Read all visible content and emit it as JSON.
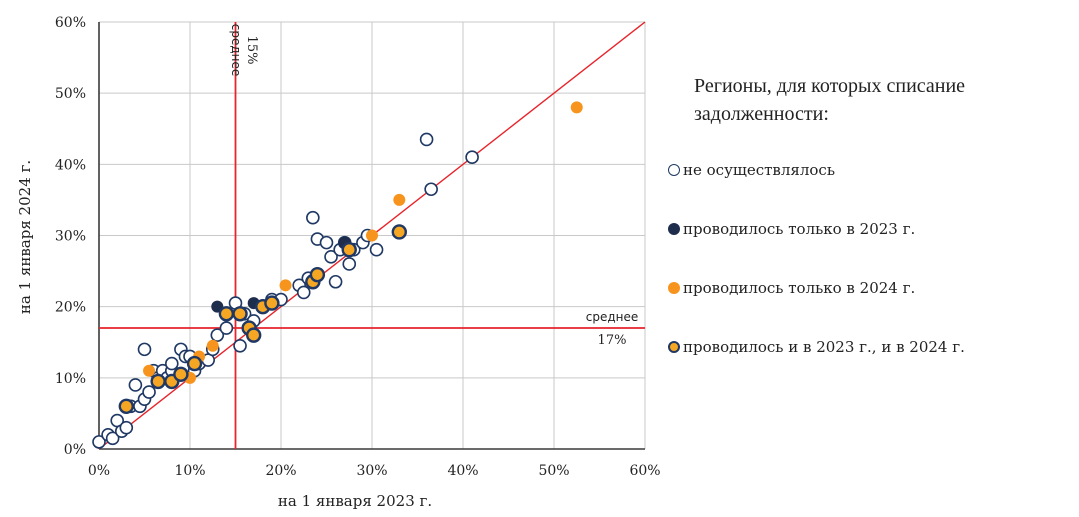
{
  "chart_data": {
    "type": "scatter",
    "xlabel": "на 1 января 2023 г.",
    "ylabel": "на 1 января 2024 г.",
    "xlim": [
      0,
      60
    ],
    "ylim": [
      0,
      60
    ],
    "x_ticks": [
      "0%",
      "10%",
      "20%",
      "30%",
      "40%",
      "50%",
      "60%"
    ],
    "y_ticks": [
      "0%",
      "10%",
      "20%",
      "30%",
      "40%",
      "50%",
      "60%"
    ],
    "grid": true,
    "reference_lines": [
      {
        "orientation": "vertical",
        "value": 15,
        "label": "среднее",
        "value_label": "15%"
      },
      {
        "orientation": "horizontal",
        "value": 17,
        "label": "среднее",
        "value_label": "17%"
      },
      {
        "orientation": "diagonal",
        "from": [
          0,
          0
        ],
        "to": [
          60,
          60
        ]
      }
    ],
    "legend": {
      "title": "Регионы, для которых списание задолженности:",
      "placement": "right"
    },
    "series": [
      {
        "name": "не осуществлялось",
        "marker": "hollow",
        "color": "#1f3864",
        "x": [
          0,
          1,
          1.5,
          2,
          2.5,
          3,
          3.5,
          4,
          4.5,
          5,
          5,
          5.5,
          6,
          6.5,
          7,
          7.5,
          8,
          8,
          9,
          9.5,
          10,
          10.5,
          11,
          12,
          12.5,
          13,
          14,
          15,
          15.5,
          16,
          17,
          18,
          19,
          20,
          22,
          22.5,
          23,
          23.5,
          24,
          25,
          25.5,
          26,
          26.5,
          27,
          27.5,
          28,
          29,
          29.5,
          30.5,
          36,
          36.5,
          41
        ],
        "y": [
          1,
          2,
          1.5,
          4,
          2.5,
          3,
          6,
          9,
          6,
          7,
          14,
          8,
          11,
          10,
          11,
          10,
          11,
          12,
          14,
          13,
          13,
          11,
          12,
          12.5,
          14,
          16,
          17,
          20.5,
          14.5,
          19,
          18,
          20,
          21,
          21,
          23,
          22,
          24,
          32.5,
          29.5,
          29,
          27,
          23.5,
          28,
          29,
          26,
          28,
          29,
          30,
          28,
          43.5,
          36.5,
          41
        ]
      },
      {
        "name": "проводилось только в 2023 г.",
        "marker": "filled",
        "color": "#1f2d4d",
        "x": [
          13,
          17,
          19,
          27
        ],
        "y": [
          20,
          20.5,
          20.5,
          29
        ]
      },
      {
        "name": "проводилось только в 2024 г.",
        "marker": "filled",
        "color": "#f7941d",
        "x": [
          5.5,
          10,
          11,
          12.5,
          20.5,
          30,
          33,
          52.5
        ],
        "y": [
          11,
          10,
          13,
          14.5,
          23,
          30,
          35,
          48
        ]
      },
      {
        "name": "проводилось и в 2023 г., и в 2024 г.",
        "marker": "filled-outlined",
        "color": "#f5a623",
        "stroke": "#1f3864",
        "x": [
          3,
          6.5,
          8,
          9,
          10.5,
          14,
          15.5,
          16.5,
          17,
          18,
          19,
          23.5,
          24,
          27.5,
          33
        ],
        "y": [
          6,
          9.5,
          9.5,
          10.5,
          12,
          19,
          19,
          17,
          16,
          20,
          20.5,
          23.5,
          24.5,
          28,
          30.5
        ]
      }
    ]
  }
}
